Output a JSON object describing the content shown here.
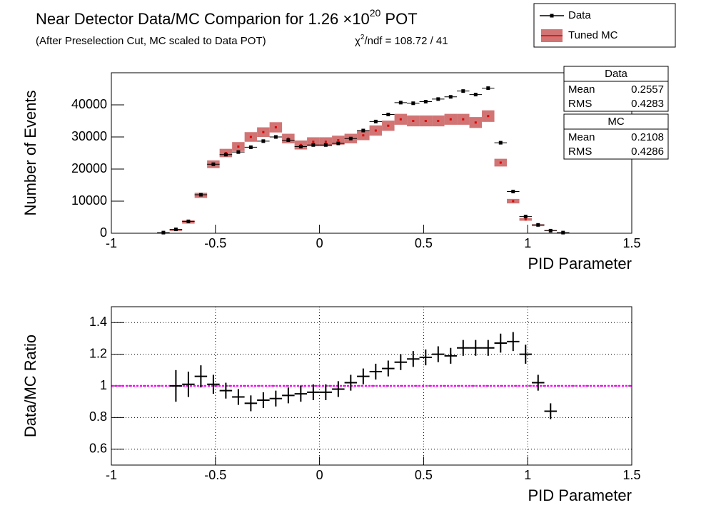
{
  "chart_data": [
    {
      "type": "errorbar",
      "title": "Near Detector Data/MC Comparion for 1.26 ×10",
      "title_sup": "20",
      "title_end": " POT",
      "subtitle": "(After Preselection Cut, MC scaled to Data POT)",
      "chi_label": "χ",
      "chi_sup": "2",
      "chi_text": "/ndf = 108.72 / 41",
      "xlabel": "PID Parameter",
      "ylabel": "Number of Events",
      "xlim": [
        -1,
        1.5
      ],
      "xticks": [
        -1,
        -0.5,
        0,
        0.5,
        1,
        1.5
      ],
      "ylim": [
        0,
        50000
      ],
      "yticks": [
        0,
        10000,
        20000,
        30000,
        40000
      ],
      "grid": false,
      "legend": "top-right",
      "xerr": 0.03,
      "x": [
        -0.75,
        -0.69,
        -0.63,
        -0.57,
        -0.51,
        -0.45,
        -0.39,
        -0.33,
        -0.27,
        -0.21,
        -0.15,
        -0.09,
        -0.03,
        0.03,
        0.09,
        0.15,
        0.21,
        0.27,
        0.33,
        0.39,
        0.45,
        0.51,
        0.57,
        0.63,
        0.69,
        0.75,
        0.81,
        0.87,
        0.93,
        0.99,
        1.05,
        1.11,
        1.17
      ],
      "series": [
        {
          "name": "Tuned MC",
          "color": "#e00000",
          "band_color": "#d27474",
          "style": "band",
          "values": [
            100,
            1000,
            3500,
            11800,
            21500,
            25000,
            27000,
            30000,
            31500,
            33000,
            29500,
            27500,
            28500,
            28500,
            29000,
            29500,
            30500,
            32000,
            33500,
            35500,
            35000,
            35000,
            35000,
            35500,
            35500,
            34500,
            36500,
            22000,
            10000,
            4300,
            2500,
            900,
            200
          ],
          "errors": [
            100,
            300,
            500,
            800,
            1200,
            1300,
            1400,
            1500,
            1500,
            1600,
            1500,
            1400,
            1400,
            1400,
            1400,
            1500,
            1500,
            1600,
            1600,
            1700,
            1700,
            1700,
            1700,
            1700,
            1700,
            1700,
            1800,
            1200,
            700,
            400,
            300,
            150,
            80
          ]
        },
        {
          "name": "Data",
          "color": "#000000",
          "style": "points",
          "values": [
            200,
            1200,
            3700,
            12000,
            21500,
            24500,
            25300,
            26800,
            28700,
            30000,
            29000,
            27000,
            27500,
            27500,
            28000,
            29500,
            32000,
            34800,
            37000,
            40700,
            40500,
            41000,
            41800,
            42500,
            44300,
            43200,
            45200,
            28200,
            13000,
            5200,
            2600,
            800,
            200
          ]
        }
      ],
      "stats": [
        {
          "name": "Data",
          "color": "#000000",
          "entries": [
            {
              "label": "Mean",
              "value": 0.2557
            },
            {
              "label": "RMS",
              "value": 0.4283
            }
          ]
        },
        {
          "name": "MC",
          "color": "#e00000",
          "entries": [
            {
              "label": "Mean",
              "value": 0.2108
            },
            {
              "label": "RMS",
              "value": 0.4286
            }
          ]
        }
      ]
    },
    {
      "type": "errorbar",
      "xlabel": "PID Parameter",
      "ylabel": "Data/MC Ratio",
      "xlim": [
        -1,
        1.5
      ],
      "xticks": [
        -1,
        -0.5,
        0,
        0.5,
        1,
        1.5
      ],
      "ylim": [
        0.5,
        1.5
      ],
      "yticks": [
        0.6,
        0.8,
        1,
        1.2,
        1.4
      ],
      "grid": true,
      "xerr": 0.03,
      "reference_line": 1,
      "reference_color": "#ff00ff",
      "x": [
        -0.69,
        -0.63,
        -0.57,
        -0.51,
        -0.45,
        -0.39,
        -0.33,
        -0.27,
        -0.21,
        -0.15,
        -0.09,
        -0.03,
        0.03,
        0.09,
        0.15,
        0.21,
        0.27,
        0.33,
        0.39,
        0.45,
        0.51,
        0.57,
        0.63,
        0.69,
        0.75,
        0.81,
        0.87,
        0.93,
        0.99,
        1.05,
        1.11
      ],
      "series": [
        {
          "name": "Ratio",
          "color": "#000000",
          "style": "cross",
          "values": [
            1.0,
            1.01,
            1.06,
            1.01,
            0.97,
            0.93,
            0.89,
            0.91,
            0.92,
            0.94,
            0.95,
            0.96,
            0.96,
            0.98,
            1.02,
            1.06,
            1.09,
            1.11,
            1.15,
            1.17,
            1.18,
            1.2,
            1.19,
            1.24,
            1.24,
            1.24,
            1.27,
            1.28,
            1.2,
            1.02,
            0.84
          ],
          "errors": [
            0.1,
            0.08,
            0.07,
            0.06,
            0.05,
            0.05,
            0.05,
            0.05,
            0.05,
            0.05,
            0.05,
            0.05,
            0.05,
            0.05,
            0.05,
            0.05,
            0.05,
            0.05,
            0.05,
            0.05,
            0.05,
            0.05,
            0.05,
            0.05,
            0.05,
            0.05,
            0.06,
            0.06,
            0.06,
            0.05,
            0.05
          ]
        }
      ]
    }
  ]
}
